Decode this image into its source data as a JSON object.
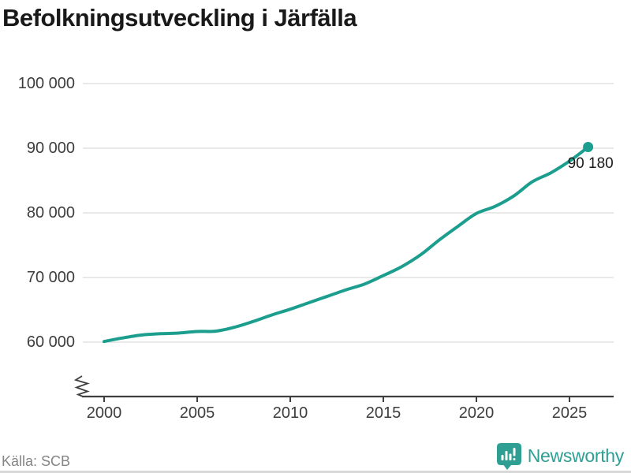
{
  "title": "Befolkningsutveckling i Järfälla",
  "source": "Källa: SCB",
  "branding": {
    "name": "Newsworthy",
    "logo_icon": "newsworthy-bar-chart-bubble-icon",
    "color": "#2f9f93"
  },
  "colors": {
    "line": "#1b9e8e",
    "grid": "#e2e2e2",
    "axis": "#3f3f3f",
    "tick_text": "#3d3d3d",
    "title_text": "#191919",
    "source_text": "#858585"
  },
  "chart_data": {
    "type": "line",
    "title": "Befolkningsutveckling i Järfälla",
    "xlabel": "",
    "ylabel": "",
    "grid": "horizontal",
    "legend": "none",
    "axis_break": true,
    "ylim": [
      60000,
      100000
    ],
    "y_ticks": [
      60000,
      70000,
      80000,
      90000,
      100000
    ],
    "y_tick_labels": [
      "60 000",
      "70 000",
      "80 000",
      "90 000",
      "100 000"
    ],
    "x_ticks": [
      2000,
      2005,
      2010,
      2015,
      2020,
      2025
    ],
    "x_tick_labels": [
      "2000",
      "2005",
      "2010",
      "2015",
      "2020",
      "2025"
    ],
    "x": [
      2000,
      2001,
      2002,
      2003,
      2004,
      2005,
      2006,
      2007,
      2008,
      2009,
      2010,
      2011,
      2012,
      2013,
      2014,
      2015,
      2016,
      2017,
      2018,
      2019,
      2020,
      2021,
      2022,
      2023,
      2024,
      2025,
      2026
    ],
    "series": [
      {
        "name": "Befolkning",
        "values": [
          60100,
          60650,
          61100,
          61300,
          61400,
          61650,
          61700,
          62300,
          63200,
          64200,
          65100,
          66100,
          67100,
          68100,
          69000,
          70300,
          71700,
          73500,
          75800,
          77900,
          79900,
          81000,
          82600,
          84800,
          86200,
          88000,
          90180
        ]
      }
    ],
    "last_value": 90180,
    "last_point_label": "90 180"
  }
}
